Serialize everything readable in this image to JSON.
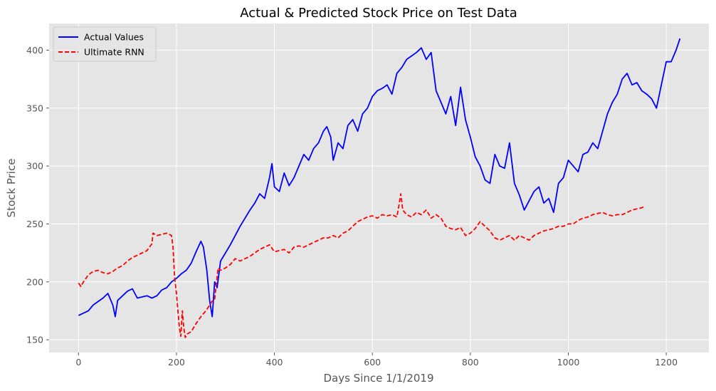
{
  "chart_data": {
    "type": "line",
    "title": "Actual & Predicted Stock Price on Test Data",
    "xlabel": "Days Since 1/1/2019",
    "ylabel": "Stock Price",
    "xlim": [
      -60,
      1287
    ],
    "ylim": [
      139,
      423
    ],
    "xticks": [
      0,
      200,
      400,
      600,
      800,
      1000,
      1200
    ],
    "yticks": [
      150,
      200,
      250,
      300,
      350,
      400
    ],
    "grid": true,
    "legend_position": "top-left",
    "series": [
      {
        "name": "Actual Values",
        "color": "#0000ff",
        "style": "solid",
        "x": [
          0,
          10,
          20,
          30,
          40,
          50,
          60,
          70,
          75,
          80,
          90,
          100,
          110,
          120,
          130,
          140,
          150,
          160,
          170,
          180,
          190,
          200,
          210,
          220,
          230,
          240,
          250,
          255,
          262,
          268,
          273,
          278,
          283,
          290,
          300,
          310,
          320,
          330,
          340,
          350,
          360,
          370,
          380,
          390,
          395,
          400,
          410,
          420,
          430,
          440,
          450,
          460,
          470,
          480,
          490,
          500,
          507,
          515,
          520,
          530,
          540,
          550,
          560,
          570,
          580,
          590,
          600,
          610,
          620,
          630,
          640,
          650,
          660,
          670,
          680,
          690,
          700,
          710,
          720,
          730,
          740,
          750,
          760,
          770,
          780,
          790,
          800,
          810,
          820,
          830,
          840,
          850,
          860,
          870,
          880,
          890,
          900,
          910,
          920,
          930,
          940,
          950,
          960,
          970,
          980,
          990,
          1000,
          1010,
          1020,
          1030,
          1040,
          1050,
          1060,
          1070,
          1080,
          1090,
          1100,
          1110,
          1120,
          1130,
          1140,
          1150,
          1160,
          1170,
          1180,
          1190,
          1200,
          1210,
          1220,
          1228
        ],
        "values": [
          171,
          173,
          175,
          180,
          183,
          186,
          190,
          180,
          170,
          184,
          188,
          192,
          194,
          186,
          187,
          188,
          186,
          188,
          193,
          195,
          200,
          203,
          207,
          210,
          216,
          226,
          235,
          230,
          210,
          183,
          170,
          200,
          195,
          218,
          225,
          232,
          240,
          248,
          255,
          262,
          268,
          276,
          272,
          290,
          302,
          282,
          278,
          294,
          283,
          290,
          300,
          310,
          305,
          315,
          320,
          330,
          334,
          325,
          305,
          320,
          315,
          335,
          340,
          330,
          345,
          350,
          360,
          365,
          367,
          370,
          362,
          380,
          385,
          392,
          395,
          398,
          402,
          392,
          398,
          365,
          355,
          345,
          360,
          335,
          368,
          340,
          325,
          308,
          300,
          288,
          285,
          310,
          300,
          298,
          320,
          285,
          275,
          262,
          270,
          278,
          282,
          268,
          272,
          260,
          285,
          290,
          305,
          300,
          295,
          310,
          312,
          320,
          315,
          330,
          345,
          355,
          362,
          375,
          380,
          370,
          372,
          365,
          362,
          358,
          350,
          370,
          390,
          390,
          400,
          410
        ]
      },
      {
        "name": "Ultimate RNN",
        "color": "#ff0000",
        "style": "dashed",
        "x": [
          0,
          5,
          10,
          20,
          30,
          40,
          50,
          60,
          70,
          80,
          90,
          100,
          110,
          120,
          130,
          140,
          150,
          152,
          160,
          170,
          180,
          190,
          193,
          196,
          200,
          203,
          206,
          209,
          212,
          215,
          218,
          222,
          230,
          240,
          250,
          260,
          268,
          272,
          278,
          285,
          290,
          300,
          310,
          320,
          330,
          340,
          350,
          360,
          370,
          380,
          390,
          400,
          410,
          420,
          430,
          440,
          450,
          460,
          470,
          480,
          490,
          500,
          510,
          520,
          530,
          540,
          550,
          560,
          570,
          580,
          590,
          600,
          610,
          620,
          630,
          640,
          650,
          655,
          658,
          662,
          670,
          680,
          690,
          700,
          710,
          720,
          730,
          740,
          750,
          760,
          770,
          780,
          790,
          800,
          810,
          820,
          830,
          840,
          850,
          860,
          870,
          880,
          890,
          900,
          910,
          920,
          930,
          940,
          950,
          960,
          970,
          980,
          990,
          1000,
          1010,
          1020,
          1030,
          1040,
          1050,
          1060,
          1070,
          1080,
          1090,
          1100,
          1110,
          1120,
          1130,
          1140,
          1150,
          1155
        ],
        "values": [
          199,
          196,
          200,
          206,
          209,
          210,
          208,
          207,
          209,
          212,
          214,
          218,
          221,
          223,
          225,
          227,
          233,
          242,
          240,
          241,
          242,
          240,
          230,
          205,
          190,
          175,
          160,
          153,
          175,
          160,
          152,
          155,
          157,
          164,
          170,
          175,
          180,
          183,
          185,
          212,
          210,
          212,
          215,
          220,
          218,
          220,
          222,
          225,
          228,
          230,
          232,
          226,
          227,
          228,
          225,
          230,
          231,
          230,
          232,
          234,
          236,
          238,
          238,
          240,
          238,
          242,
          244,
          248,
          252,
          254,
          256,
          257,
          255,
          258,
          257,
          258,
          256,
          268,
          276,
          262,
          258,
          256,
          260,
          258,
          262,
          255,
          258,
          255,
          248,
          246,
          245,
          247,
          240,
          242,
          246,
          252,
          248,
          244,
          238,
          236,
          238,
          240,
          236,
          240,
          238,
          236,
          240,
          242,
          244,
          245,
          246,
          248,
          248,
          250,
          250,
          253,
          255,
          256,
          258,
          259,
          260,
          258,
          257,
          258,
          258,
          260,
          262,
          263,
          264,
          265
        ]
      }
    ]
  }
}
